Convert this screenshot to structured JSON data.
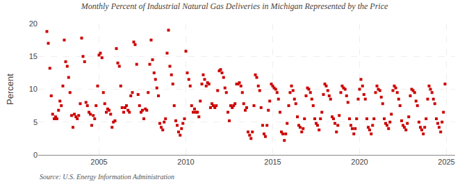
{
  "chart_data": {
    "type": "scatter",
    "title": "Monthly Percent of Industrial Natural Gas Deliveries in Michigan Represented by the Price",
    "ylabel": "Percent",
    "annotations": [
      "Source: U.S. Energy Information Administration"
    ],
    "color": "#CC0000",
    "marker": "square",
    "grid": true,
    "xlim": [
      2001.5,
      2025.5
    ],
    "xticks": [
      2005,
      2010,
      2015,
      2020,
      2025
    ],
    "ylim": [
      0,
      20
    ],
    "yticks": [
      0,
      5,
      10,
      15,
      20
    ],
    "x": [
      2002.0,
      2002.08,
      2002.17,
      2002.25,
      2002.33,
      2002.42,
      2002.5,
      2002.58,
      2002.67,
      2002.75,
      2002.83,
      2002.92,
      2003.0,
      2003.08,
      2003.17,
      2003.25,
      2003.33,
      2003.42,
      2003.5,
      2003.58,
      2003.67,
      2003.75,
      2003.83,
      2003.92,
      2004.0,
      2004.08,
      2004.17,
      2004.25,
      2004.33,
      2004.42,
      2004.5,
      2004.58,
      2004.67,
      2004.75,
      2004.83,
      2004.92,
      2005.0,
      2005.08,
      2005.17,
      2005.25,
      2005.33,
      2005.42,
      2005.5,
      2005.58,
      2005.67,
      2005.75,
      2005.83,
      2005.92,
      2006.0,
      2006.08,
      2006.17,
      2006.25,
      2006.33,
      2006.42,
      2006.5,
      2006.58,
      2006.67,
      2006.75,
      2006.83,
      2006.92,
      2007.0,
      2007.08,
      2007.17,
      2007.25,
      2007.33,
      2007.42,
      2007.5,
      2007.58,
      2007.67,
      2007.75,
      2007.83,
      2007.92,
      2008.0,
      2008.08,
      2008.17,
      2008.25,
      2008.33,
      2008.42,
      2008.5,
      2008.58,
      2008.67,
      2008.75,
      2008.83,
      2008.92,
      2009.0,
      2009.08,
      2009.17,
      2009.25,
      2009.33,
      2009.42,
      2009.5,
      2009.58,
      2009.67,
      2009.75,
      2009.83,
      2009.92,
      2010.0,
      2010.08,
      2010.17,
      2010.25,
      2010.33,
      2010.42,
      2010.5,
      2010.58,
      2010.67,
      2010.75,
      2010.83,
      2010.92,
      2011.0,
      2011.08,
      2011.17,
      2011.25,
      2011.33,
      2011.42,
      2011.5,
      2011.58,
      2011.67,
      2011.75,
      2011.83,
      2011.92,
      2012.0,
      2012.08,
      2012.17,
      2012.25,
      2012.33,
      2012.42,
      2012.5,
      2012.58,
      2012.67,
      2012.75,
      2012.83,
      2012.92,
      2013.0,
      2013.08,
      2013.17,
      2013.25,
      2013.33,
      2013.42,
      2013.5,
      2013.58,
      2013.67,
      2013.75,
      2013.83,
      2013.92,
      2014.0,
      2014.08,
      2014.17,
      2014.25,
      2014.33,
      2014.42,
      2014.5,
      2014.58,
      2014.67,
      2014.75,
      2014.83,
      2014.92,
      2015.0,
      2015.08,
      2015.17,
      2015.25,
      2015.33,
      2015.42,
      2015.5,
      2015.58,
      2015.67,
      2015.75,
      2015.83,
      2015.92,
      2016.0,
      2016.08,
      2016.17,
      2016.25,
      2016.33,
      2016.42,
      2016.5,
      2016.58,
      2016.67,
      2016.75,
      2016.83,
      2016.92,
      2017.0,
      2017.08,
      2017.17,
      2017.25,
      2017.33,
      2017.42,
      2017.5,
      2017.58,
      2017.67,
      2017.75,
      2017.83,
      2017.92,
      2018.0,
      2018.08,
      2018.17,
      2018.25,
      2018.33,
      2018.42,
      2018.5,
      2018.58,
      2018.67,
      2018.75,
      2018.83,
      2018.92,
      2019.0,
      2019.08,
      2019.17,
      2019.25,
      2019.33,
      2019.42,
      2019.5,
      2019.58,
      2019.67,
      2019.75,
      2019.83,
      2019.92,
      2020.0,
      2020.08,
      2020.17,
      2020.25,
      2020.33,
      2020.42,
      2020.5,
      2020.58,
      2020.67,
      2020.75,
      2020.83,
      2020.92,
      2021.0,
      2021.08,
      2021.17,
      2021.25,
      2021.33,
      2021.42,
      2021.5,
      2021.58,
      2021.67,
      2021.75,
      2021.83,
      2021.92,
      2022.0,
      2022.08,
      2022.17,
      2022.25,
      2022.33,
      2022.42,
      2022.5,
      2022.58,
      2022.67,
      2022.75,
      2022.83,
      2022.92,
      2023.0,
      2023.08,
      2023.17,
      2023.25,
      2023.33,
      2023.42,
      2023.5,
      2023.58,
      2023.67,
      2023.75,
      2023.83,
      2023.92,
      2024.0,
      2024.08,
      2024.17,
      2024.25,
      2024.33,
      2024.42,
      2024.5,
      2024.58,
      2024.67,
      2024.75,
      2024.83,
      2024.92
    ],
    "values": [
      18.8,
      17.0,
      13.2,
      9.0,
      6.2,
      5.5,
      5.8,
      5.5,
      6.8,
      8.2,
      7.5,
      10.5,
      17.5,
      14.2,
      13.5,
      11.8,
      9.5,
      6.0,
      4.2,
      6.2,
      5.8,
      5.5,
      6.0,
      7.8,
      17.8,
      15.0,
      14.2,
      8.0,
      7.5,
      6.5,
      6.2,
      4.5,
      6.0,
      5.5,
      7.5,
      10.5,
      15.2,
      15.5,
      14.8,
      9.5,
      7.8,
      6.5,
      7.0,
      6.8,
      6.2,
      4.2,
      5.0,
      5.2,
      16.2,
      14.0,
      13.5,
      10.5,
      7.2,
      6.5,
      7.2,
      7.5,
      6.8,
      6.5,
      9.0,
      9.5,
      17.2,
      16.8,
      13.8,
      9.2,
      7.5,
      6.5,
      6.8,
      5.5,
      7.0,
      6.8,
      9.5,
      13.8,
      17.5,
      14.5,
      12.5,
      11.5,
      10.2,
      9.0,
      4.8,
      4.2,
      3.8,
      5.0,
      5.5,
      15.5,
      19.0,
      13.5,
      12.2,
      10.8,
      7.5,
      5.2,
      4.5,
      3.5,
      3.0,
      4.0,
      4.8,
      5.5,
      15.8,
      12.5,
      11.5,
      10.5,
      7.5,
      6.5,
      7.0,
      6.5,
      6.5,
      5.8,
      8.2,
      10.8,
      12.2,
      11.5,
      10.5,
      11.0,
      10.8,
      7.2,
      7.8,
      7.5,
      7.2,
      7.5,
      9.8,
      12.8,
      13.0,
      12.5,
      11.8,
      10.2,
      9.5,
      6.5,
      5.2,
      7.5,
      7.2,
      7.5,
      7.8,
      10.8,
      10.8,
      11.0,
      10.5,
      9.5,
      7.8,
      6.8,
      7.2,
      3.5,
      3.0,
      2.5,
      3.5,
      7.5,
      12.2,
      11.8,
      10.5,
      9.8,
      7.2,
      4.5,
      3.2,
      2.8,
      4.5,
      6.8,
      8.2,
      10.8,
      10.5,
      10.2,
      10.0,
      9.5,
      8.5,
      6.5,
      3.5,
      3.2,
      2.2,
      3.2,
      4.8,
      7.5,
      9.5,
      10.5,
      9.8,
      8.5,
      7.8,
      5.8,
      4.5,
      4.2,
      3.5,
      4.0,
      5.5,
      9.0,
      10.2,
      10.0,
      9.5,
      8.5,
      7.5,
      5.5,
      4.8,
      4.5,
      3.8,
      5.5,
      6.5,
      9.2,
      10.8,
      10.5,
      9.8,
      9.0,
      8.5,
      5.8,
      5.5,
      4.8,
      3.5,
      4.5,
      6.0,
      9.5,
      10.5,
      10.2,
      10.0,
      9.0,
      8.0,
      5.5,
      4.5,
      4.0,
      3.2,
      4.0,
      5.5,
      8.5,
      10.0,
      11.5,
      10.5,
      9.2,
      8.5,
      5.5,
      4.2,
      3.8,
      3.2,
      4.5,
      5.5,
      9.5,
      10.5,
      10.0,
      9.8,
      8.8,
      7.8,
      5.5,
      4.8,
      4.5,
      4.0,
      5.0,
      6.2,
      9.8,
      10.5,
      10.2,
      9.5,
      8.5,
      7.5,
      5.2,
      4.5,
      4.2,
      3.8,
      4.8,
      5.8,
      9.0,
      10.0,
      9.8,
      9.5,
      8.2,
      7.5,
      5.0,
      4.2,
      3.8,
      3.2,
      4.2,
      5.5,
      8.5,
      10.5,
      10.0,
      9.5,
      8.5,
      7.8,
      5.5,
      4.8,
      4.2,
      3.5,
      5.0,
      6.5,
      10.8
    ]
  }
}
